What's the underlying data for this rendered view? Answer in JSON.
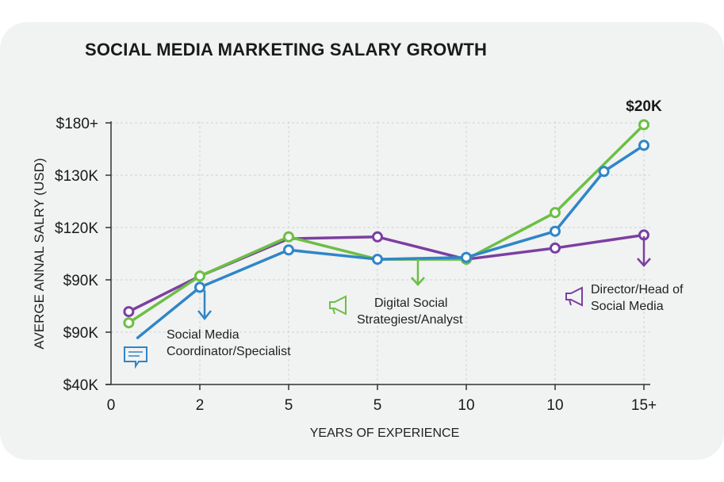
{
  "chart_data": {
    "type": "line",
    "title": "SOCIAL MEDIA MARKETING SALARY GROWTH",
    "xlabel": "YEARS OF EXPERIENCE",
    "ylabel": "AVERGE  ANNAL SALRY (USD)",
    "x_tick_labels": [
      "0",
      "2",
      "5",
      "5",
      "10",
      "10",
      "15+"
    ],
    "y_tick_labels": [
      "$40K",
      "$90K",
      "$90K",
      "$120K",
      "$130K",
      "$180+"
    ],
    "ylim": [
      40,
      180
    ],
    "y_units": "thousand USD",
    "grid": true,
    "series": [
      {
        "color": "#7b3fa0",
        "x": [
          0.2,
          1,
          2,
          3,
          4,
          5,
          6
        ],
        "values": [
          79,
          98,
          118,
          119,
          107,
          113,
          120
        ],
        "markers": [
          true,
          false,
          false,
          true,
          false,
          true,
          true
        ]
      },
      {
        "color": "#6cbf45",
        "x": [
          0.2,
          1,
          2,
          3,
          4,
          5,
          6
        ],
        "values": [
          73,
          98,
          119,
          107,
          107,
          132,
          179
        ],
        "markers": [
          true,
          true,
          true,
          false,
          true,
          true,
          true
        ]
      },
      {
        "color": "#2f86c8",
        "x": [
          0.3,
          1,
          2,
          3,
          4,
          5,
          5.55,
          6
        ],
        "values": [
          65,
          92,
          112,
          107,
          108,
          122,
          154,
          168
        ],
        "markers": [
          false,
          true,
          true,
          true,
          true,
          true,
          true,
          true
        ]
      }
    ],
    "annotations": [
      {
        "text": "$20K",
        "color": "#1a1a1a"
      },
      {
        "lines": [
          "Social Media",
          "Coordinator/Specialist"
        ],
        "icon": "chat-icon",
        "color": "#2f86c8"
      },
      {
        "lines": [
          "Digital Social",
          "Strategiest/Analyst"
        ],
        "icon": "megaphone-icon",
        "color": "#6cbf45"
      },
      {
        "lines": [
          "Director/Head of",
          "Social Media"
        ],
        "icon": "megaphone-icon",
        "color": "#7b3fa0"
      }
    ]
  }
}
